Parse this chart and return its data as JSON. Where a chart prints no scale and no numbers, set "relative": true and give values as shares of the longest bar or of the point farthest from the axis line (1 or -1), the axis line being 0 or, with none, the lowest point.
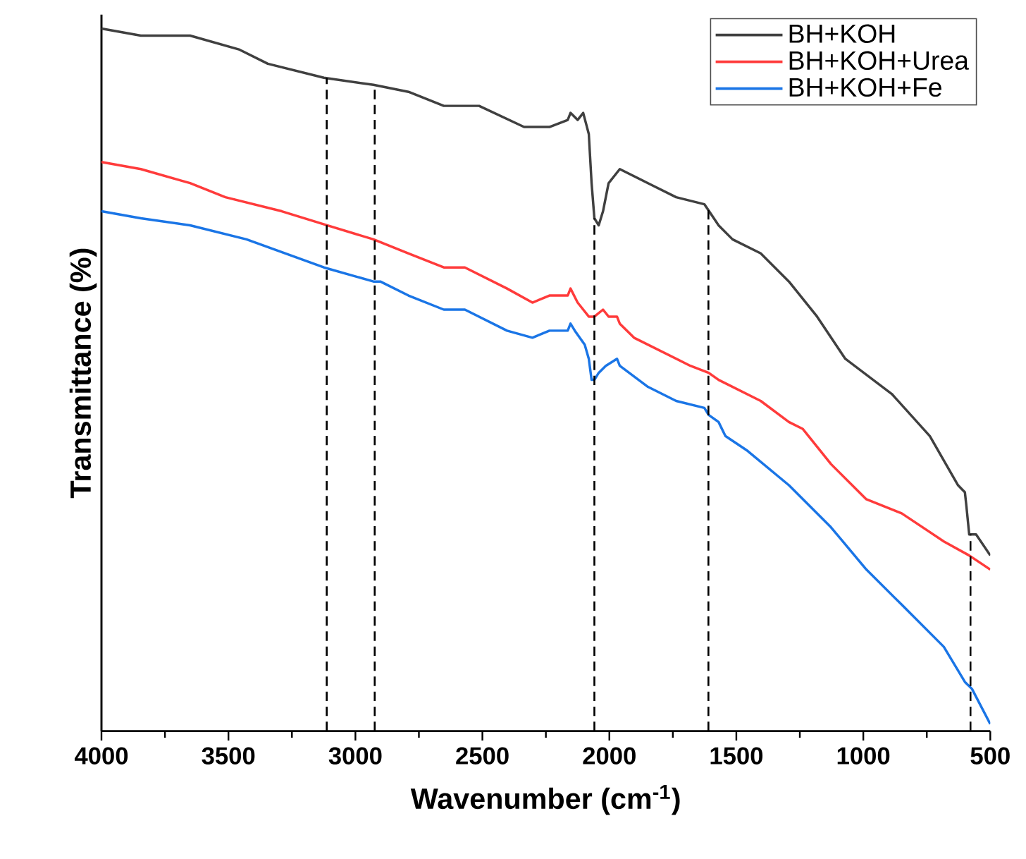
{
  "chart_data": {
    "type": "line",
    "relative": true,
    "xlabel": "Wavenumber (cm$^{-1}$)",
    "ylabel": "Transmittance (%)",
    "xlim": [
      4000,
      500
    ],
    "xticks": [
      4000,
      3500,
      3000,
      2500,
      2000,
      1500,
      1000,
      500
    ],
    "legend": "top right",
    "grid": false,
    "marker": "none",
    "line_style": "solid",
    "series": [
      {
        "name": "BH+KOH",
        "color": "#404040",
        "x": [
          4000,
          3845,
          3651,
          3456,
          3345,
          3124,
          2929,
          2791,
          2652,
          2624,
          2513,
          2336,
          2303,
          2236,
          2164,
          2153,
          2125,
          2103,
          2081,
          2070,
          2059,
          2042,
          2025,
          2003,
          1959,
          1848,
          1737,
          1626,
          1570,
          1515,
          1404,
          1293,
          1182,
          1071,
          888,
          738,
          627,
          600,
          594,
          583,
          572,
          556,
          500
        ],
        "values": [
          1.0,
          0.99,
          0.99,
          0.97,
          0.95,
          0.93,
          0.92,
          0.91,
          0.89,
          0.89,
          0.89,
          0.86,
          0.86,
          0.86,
          0.87,
          0.88,
          0.87,
          0.88,
          0.85,
          0.78,
          0.73,
          0.72,
          0.74,
          0.78,
          0.8,
          0.78,
          0.76,
          0.75,
          0.72,
          0.7,
          0.68,
          0.64,
          0.59,
          0.53,
          0.48,
          0.42,
          0.35,
          0.34,
          0.32,
          0.28,
          0.28,
          0.28,
          0.25
        ]
      },
      {
        "name": "BH+KOH+Urea",
        "color": "#ff3b3b",
        "x": [
          4000,
          3845,
          3651,
          3512,
          3290,
          3112,
          2929,
          2791,
          2652,
          2569,
          2403,
          2303,
          2236,
          2164,
          2153,
          2125,
          2081,
          2059,
          2025,
          2003,
          1970,
          1959,
          1903,
          1792,
          1681,
          1609,
          1570,
          1404,
          1293,
          1238,
          1127,
          988,
          849,
          683,
          583,
          500
        ],
        "values": [
          0.81,
          0.8,
          0.78,
          0.76,
          0.74,
          0.72,
          0.7,
          0.68,
          0.66,
          0.66,
          0.63,
          0.61,
          0.62,
          0.62,
          0.63,
          0.61,
          0.59,
          0.59,
          0.6,
          0.59,
          0.59,
          0.58,
          0.56,
          0.54,
          0.52,
          0.51,
          0.5,
          0.47,
          0.44,
          0.43,
          0.38,
          0.33,
          0.31,
          0.27,
          0.25,
          0.23
        ]
      },
      {
        "name": "BH+KOH+Fe",
        "color": "#1a75e6",
        "x": [
          4000,
          3845,
          3651,
          3429,
          3124,
          2929,
          2902,
          2791,
          2652,
          2569,
          2403,
          2303,
          2236,
          2164,
          2153,
          2136,
          2097,
          2081,
          2070,
          2059,
          2042,
          2014,
          1970,
          1959,
          1848,
          1737,
          1626,
          1609,
          1570,
          1543,
          1460,
          1293,
          1127,
          988,
          849,
          683,
          600,
          572,
          500
        ],
        "values": [
          0.74,
          0.73,
          0.72,
          0.7,
          0.66,
          0.64,
          0.64,
          0.62,
          0.6,
          0.6,
          0.57,
          0.56,
          0.57,
          0.57,
          0.58,
          0.57,
          0.55,
          0.53,
          0.5,
          0.5,
          0.51,
          0.52,
          0.53,
          0.52,
          0.49,
          0.47,
          0.46,
          0.45,
          0.44,
          0.42,
          0.4,
          0.35,
          0.29,
          0.23,
          0.18,
          0.12,
          0.07,
          0.06,
          0.01
        ]
      }
    ],
    "ref_lines": [
      {
        "axis": "x",
        "value": 3113,
        "color": "#000000",
        "line_style": "dashed"
      },
      {
        "axis": "x",
        "value": 2924,
        "color": "#000000",
        "line_style": "dashed"
      },
      {
        "axis": "x",
        "value": 2059,
        "color": "#000000",
        "line_style": "dashed"
      },
      {
        "axis": "x",
        "value": 1610,
        "color": "#000000",
        "line_style": "dashed"
      },
      {
        "axis": "x",
        "value": 578,
        "color": "#000000",
        "line_style": "dashed"
      }
    ]
  }
}
